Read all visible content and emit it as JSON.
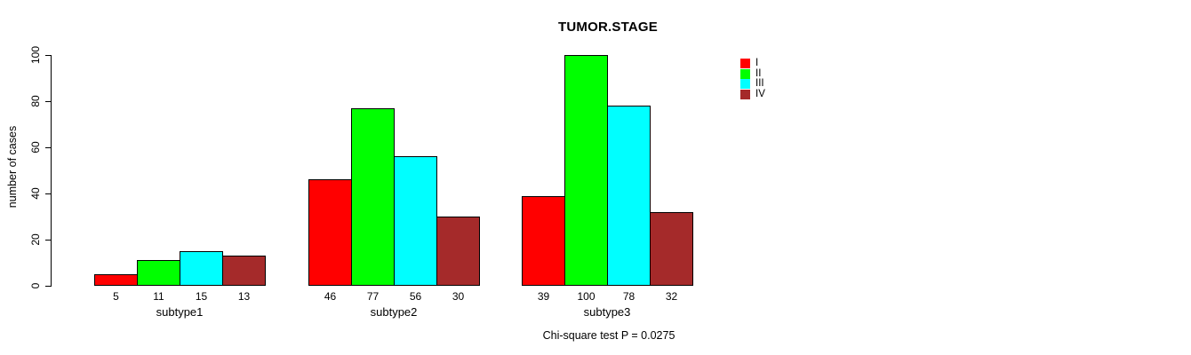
{
  "chart_data": {
    "type": "bar",
    "title": "TUMOR.STAGE",
    "xlabel": "",
    "ylabel": "number of cases",
    "categories": [
      "subtype1",
      "subtype2",
      "subtype3"
    ],
    "series": [
      {
        "name": "I",
        "color": "#FF0000",
        "values": [
          5,
          46,
          39
        ]
      },
      {
        "name": "II",
        "color": "#00FF00",
        "values": [
          11,
          77,
          100
        ]
      },
      {
        "name": "III",
        "color": "#00FFFF",
        "values": [
          15,
          56,
          78
        ]
      },
      {
        "name": "IV",
        "color": "#A52A2A",
        "values": [
          13,
          30,
          32
        ]
      }
    ],
    "bar_value_labels": [
      [
        5,
        11,
        15,
        13
      ],
      [
        46,
        77,
        56,
        30
      ],
      [
        39,
        100,
        78,
        32
      ]
    ],
    "ylim": [
      0,
      100
    ],
    "yticks": [
      0,
      20,
      40,
      60,
      80,
      100
    ],
    "grid": false,
    "legend_position": "right-outside",
    "bar_border_color": "#000000"
  },
  "footnote": "Chi-square test P = 0.0275"
}
